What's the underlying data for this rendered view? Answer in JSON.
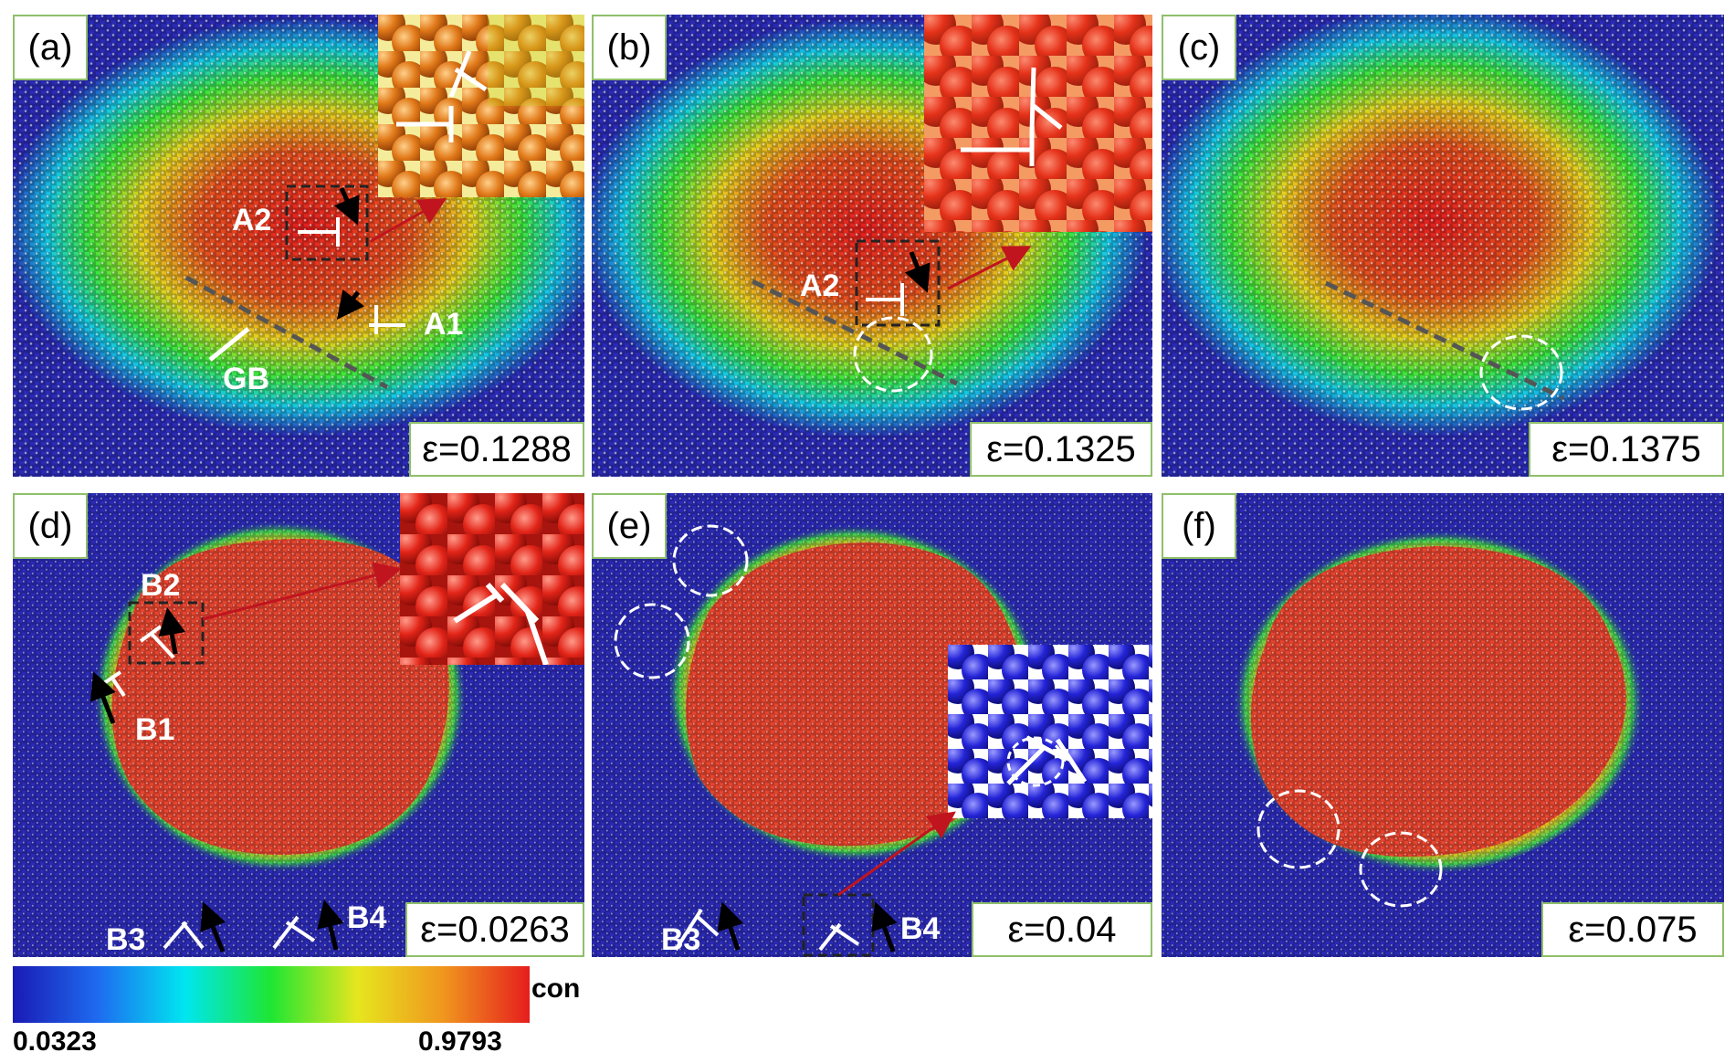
{
  "panels": [
    {
      "tag": "(a)",
      "strain": "ε=0.1288",
      "labels": {
        "a1": "A1",
        "a2": "A2",
        "gb": "GB"
      }
    },
    {
      "tag": "(b)",
      "strain": "ε=0.1325",
      "labels": {
        "a2": "A2"
      }
    },
    {
      "tag": "(c)",
      "strain": "ε=0.1375",
      "labels": {}
    },
    {
      "tag": "(d)",
      "strain": "ε=0.0263",
      "labels": {
        "b1": "B1",
        "b2": "B2",
        "b3": "B3",
        "b4": "B4"
      }
    },
    {
      "tag": "(e)",
      "strain": "ε=0.04",
      "labels": {
        "b3": "B3",
        "b4": "B4"
      }
    },
    {
      "tag": "(f)",
      "strain": "ε=0.075",
      "labels": {}
    }
  ],
  "colorbar": {
    "label": "con",
    "min": "0.0323",
    "max": "0.9793",
    "stops": [
      "#1a1ab4",
      "#1e6cf0",
      "#00e6f0",
      "#1ee632",
      "#e6e61e",
      "#f0961e",
      "#e61e1e"
    ]
  },
  "colors": {
    "particle_blue": "#2a2abf",
    "particle_red": "#dc1e1e",
    "tag_border": "#8fbf6a",
    "arrow_red": "#c0141e"
  }
}
